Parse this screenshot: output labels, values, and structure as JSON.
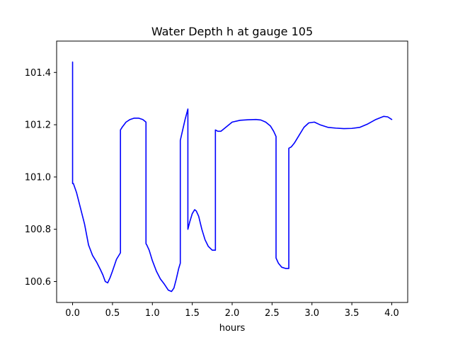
{
  "chart_data": {
    "type": "line",
    "title": "Water Depth h at gauge 105",
    "xlabel": "hours",
    "ylabel": "",
    "xlim": [
      -0.2,
      4.2
    ],
    "ylim": [
      100.52,
      101.52
    ],
    "xticks": [
      0.0,
      0.5,
      1.0,
      1.5,
      2.0,
      2.5,
      3.0,
      3.5,
      4.0
    ],
    "xtick_labels": [
      "0.0",
      "0.5",
      "1.0",
      "1.5",
      "2.0",
      "2.5",
      "3.0",
      "3.5",
      "4.0"
    ],
    "yticks": [
      100.6,
      100.8,
      101.0,
      101.2,
      101.4
    ],
    "ytick_labels": [
      "100.6",
      "100.8",
      "101.0",
      "101.2",
      "101.4"
    ],
    "grid": false,
    "series": [
      {
        "color": "#0000ff",
        "x": [
          0.0,
          0.0,
          0.01,
          0.05,
          0.1,
          0.15,
          0.2,
          0.25,
          0.3,
          0.35,
          0.38,
          0.41,
          0.44,
          0.47,
          0.5,
          0.55,
          0.6,
          0.6,
          0.62,
          0.67,
          0.72,
          0.77,
          0.83,
          0.88,
          0.92,
          0.92,
          0.93,
          0.96,
          1.0,
          1.05,
          1.1,
          1.15,
          1.2,
          1.24,
          1.27,
          1.3,
          1.33,
          1.35,
          1.35,
          1.38,
          1.41,
          1.445,
          1.445,
          1.47,
          1.5,
          1.53,
          1.55,
          1.58,
          1.62,
          1.66,
          1.7,
          1.75,
          1.79,
          1.79,
          1.82,
          1.86,
          1.92,
          2.0,
          2.1,
          2.2,
          2.3,
          2.36,
          2.42,
          2.48,
          2.52,
          2.55,
          2.55,
          2.58,
          2.62,
          2.67,
          2.71,
          2.71,
          2.74,
          2.78,
          2.84,
          2.9,
          2.96,
          3.03,
          3.1,
          3.2,
          3.3,
          3.4,
          3.5,
          3.6,
          3.7,
          3.8,
          3.9,
          3.95,
          4.0
        ],
        "y": [
          101.44,
          100.975,
          100.975,
          100.94,
          100.88,
          100.82,
          100.74,
          100.7,
          100.675,
          100.645,
          100.625,
          100.6,
          100.595,
          100.615,
          100.64,
          100.685,
          100.71,
          101.18,
          101.19,
          101.21,
          101.22,
          101.225,
          101.225,
          101.22,
          101.21,
          100.745,
          100.74,
          100.72,
          100.68,
          100.64,
          100.61,
          100.59,
          100.567,
          100.562,
          100.575,
          100.61,
          100.65,
          100.67,
          101.14,
          101.18,
          101.22,
          101.26,
          100.8,
          100.83,
          100.86,
          100.875,
          100.87,
          100.85,
          100.8,
          100.76,
          100.735,
          100.72,
          100.72,
          101.18,
          101.175,
          101.175,
          101.19,
          101.21,
          101.217,
          101.219,
          101.22,
          101.218,
          101.21,
          101.195,
          101.175,
          101.155,
          100.69,
          100.67,
          100.655,
          100.65,
          100.65,
          101.11,
          101.115,
          101.13,
          101.16,
          101.19,
          101.207,
          101.21,
          101.2,
          101.19,
          101.187,
          101.185,
          101.186,
          101.19,
          101.203,
          101.22,
          101.232,
          101.23,
          101.22
        ]
      }
    ]
  }
}
